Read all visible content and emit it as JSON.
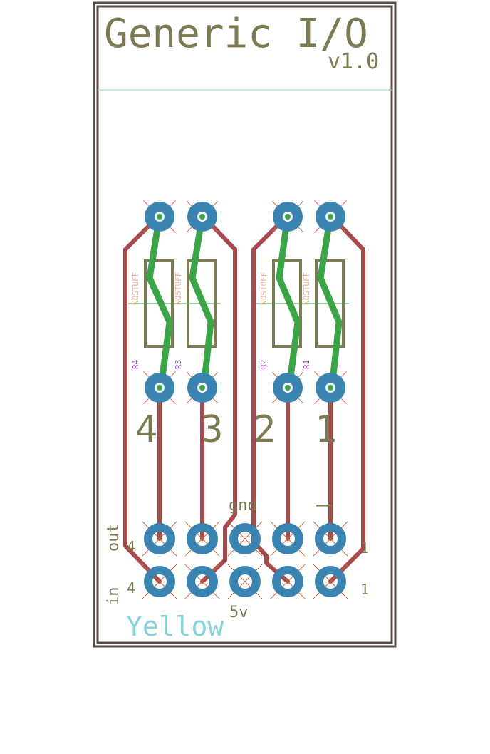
{
  "board": {
    "title": "Generic I/O",
    "version": "v1.0",
    "color_label": "Yellow"
  },
  "channels": [
    {
      "number": "4",
      "resistor": "R4",
      "value_text": "NOSTUFF"
    },
    {
      "number": "3",
      "resistor": "R3",
      "value_text": "NOSTUFF"
    },
    {
      "number": "2",
      "resistor": "R2",
      "value_text": "NOSTUFF"
    },
    {
      "number": "1",
      "resistor": "R1",
      "value_text": "NOSTUFF"
    }
  ],
  "header": {
    "gnd_label": "gnd",
    "fivev_label": "5v",
    "out_label": "out",
    "in_label": "in",
    "out_left_pin": "4",
    "in_left_pin": "4",
    "out_right_pin": "1",
    "in_right_pin": "1",
    "minus_sign": "—"
  },
  "colors": {
    "board_outline": "#5a4d47",
    "silkscreen": "#7b7a52",
    "copper_pad": "#3b83b0",
    "trace_bottom": "#a54a4d",
    "trace_top": "#3ba447",
    "label_cyan": "#86d4d8",
    "label_purple": "#9b4dcc",
    "value_orange": "#e8b39a"
  }
}
